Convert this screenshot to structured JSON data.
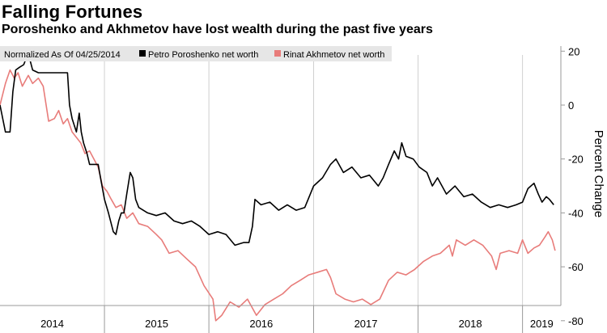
{
  "header": {
    "title": "Falling Fortunes",
    "subtitle": "Poroshenko and Akhmetov have lost wealth during the past five years"
  },
  "chart_data": {
    "type": "line",
    "title": "Falling Fortunes",
    "subtitle": "Poroshenko and Akhmetov have lost wealth during the past five years",
    "note": "Normalized As Of 04/25/2014",
    "ylabel": "Percent Change",
    "ylim": [
      -85,
      22
    ],
    "yticks": [
      20,
      0,
      -20,
      -40,
      -60,
      -80
    ],
    "xlim": [
      "2014-01-01",
      "2019-05-15"
    ],
    "xticks": [
      "2014",
      "2015",
      "2016",
      "2017",
      "2018",
      "2019"
    ],
    "legend_position": "top-left",
    "grid": "vertical year separators",
    "series": [
      {
        "name": "Petro Poroshenko net worth",
        "color": "#000000",
        "points": [
          [
            "2014-01-01",
            0
          ],
          [
            "2014-01-20",
            -10
          ],
          [
            "2014-02-05",
            -10
          ],
          [
            "2014-02-15",
            5
          ],
          [
            "2014-02-25",
            13
          ],
          [
            "2014-03-10",
            14
          ],
          [
            "2014-03-25",
            15
          ],
          [
            "2014-04-05",
            18
          ],
          [
            "2014-04-15",
            17
          ],
          [
            "2014-04-25",
            13
          ],
          [
            "2014-05-15",
            12
          ],
          [
            "2014-06-15",
            12
          ],
          [
            "2014-07-15",
            12
          ],
          [
            "2014-08-15",
            12
          ],
          [
            "2014-08-25",
            12
          ],
          [
            "2014-09-01",
            0
          ],
          [
            "2014-09-10",
            -5
          ],
          [
            "2014-09-25",
            -10
          ],
          [
            "2014-10-05",
            -3
          ],
          [
            "2014-10-12",
            -10
          ],
          [
            "2014-10-20",
            -14
          ],
          [
            "2014-11-01",
            -18
          ],
          [
            "2014-11-10",
            -22
          ],
          [
            "2014-11-20",
            -22
          ],
          [
            "2014-12-01",
            -22
          ],
          [
            "2014-12-10",
            -22
          ],
          [
            "2014-12-20",
            -28
          ],
          [
            "2015-01-01",
            -35
          ],
          [
            "2015-01-15",
            -40
          ],
          [
            "2015-02-01",
            -47
          ],
          [
            "2015-02-10",
            -48
          ],
          [
            "2015-02-20",
            -43
          ],
          [
            "2015-03-01",
            -40
          ],
          [
            "2015-03-10",
            -40
          ],
          [
            "2015-03-20",
            -33
          ],
          [
            "2015-04-01",
            -25
          ],
          [
            "2015-04-10",
            -27
          ],
          [
            "2015-04-20",
            -35
          ],
          [
            "2015-05-01",
            -38
          ],
          [
            "2015-06-01",
            -40
          ],
          [
            "2015-07-01",
            -41
          ],
          [
            "2015-08-01",
            -40
          ],
          [
            "2015-09-01",
            -43
          ],
          [
            "2015-10-01",
            -44
          ],
          [
            "2015-11-01",
            -43
          ],
          [
            "2015-12-01",
            -45
          ],
          [
            "2016-01-01",
            -48
          ],
          [
            "2016-02-01",
            -47
          ],
          [
            "2016-03-01",
            -48
          ],
          [
            "2016-04-01",
            -52
          ],
          [
            "2016-05-01",
            -51
          ],
          [
            "2016-05-20",
            -51
          ],
          [
            "2016-06-01",
            -45
          ],
          [
            "2016-06-10",
            -35
          ],
          [
            "2016-07-01",
            -37
          ],
          [
            "2016-08-01",
            -36
          ],
          [
            "2016-09-01",
            -39
          ],
          [
            "2016-10-01",
            -37
          ],
          [
            "2016-11-01",
            -39
          ],
          [
            "2016-12-01",
            -38
          ],
          [
            "2017-01-01",
            -30
          ],
          [
            "2017-02-01",
            -27
          ],
          [
            "2017-03-01",
            -22
          ],
          [
            "2017-03-20",
            -20
          ],
          [
            "2017-04-15",
            -25
          ],
          [
            "2017-05-15",
            -23
          ],
          [
            "2017-06-15",
            -27
          ],
          [
            "2017-07-15",
            -26
          ],
          [
            "2017-08-15",
            -30
          ],
          [
            "2017-09-01",
            -27
          ],
          [
            "2017-09-20",
            -22
          ],
          [
            "2017-10-10",
            -17
          ],
          [
            "2017-10-25",
            -20
          ],
          [
            "2017-11-05",
            -14
          ],
          [
            "2017-11-20",
            -19
          ],
          [
            "2017-12-15",
            -20
          ],
          [
            "2018-01-05",
            -23
          ],
          [
            "2018-02-01",
            -25
          ],
          [
            "2018-02-20",
            -30
          ],
          [
            "2018-03-10",
            -27
          ],
          [
            "2018-04-10",
            -33
          ],
          [
            "2018-05-10",
            -30
          ],
          [
            "2018-06-10",
            -34
          ],
          [
            "2018-07-10",
            -33
          ],
          [
            "2018-08-10",
            -36
          ],
          [
            "2018-09-10",
            -38
          ],
          [
            "2018-10-10",
            -37
          ],
          [
            "2018-11-10",
            -38
          ],
          [
            "2018-12-10",
            -37
          ],
          [
            "2019-01-01",
            -36
          ],
          [
            "2019-01-20",
            -31
          ],
          [
            "2019-02-10",
            -29
          ],
          [
            "2019-02-25",
            -33
          ],
          [
            "2019-03-10",
            -36
          ],
          [
            "2019-03-25",
            -34
          ],
          [
            "2019-04-05",
            -35
          ],
          [
            "2019-04-20",
            -37
          ]
        ]
      },
      {
        "name": "Rinat Akhmetov net worth",
        "color": "#e87c7a",
        "points": [
          [
            "2014-01-01",
            0
          ],
          [
            "2014-01-20",
            8
          ],
          [
            "2014-02-05",
            13
          ],
          [
            "2014-02-20",
            10
          ],
          [
            "2014-03-05",
            12
          ],
          [
            "2014-03-20",
            7
          ],
          [
            "2014-04-10",
            11
          ],
          [
            "2014-04-25",
            8
          ],
          [
            "2014-05-15",
            10
          ],
          [
            "2014-06-01",
            7
          ],
          [
            "2014-06-20",
            -6
          ],
          [
            "2014-07-10",
            -5
          ],
          [
            "2014-07-25",
            -2
          ],
          [
            "2014-08-10",
            -7
          ],
          [
            "2014-08-25",
            -5
          ],
          [
            "2014-09-10",
            -10
          ],
          [
            "2014-09-25",
            -12
          ],
          [
            "2014-10-10",
            -14
          ],
          [
            "2014-10-25",
            -18
          ],
          [
            "2014-11-10",
            -17
          ],
          [
            "2014-11-25",
            -20
          ],
          [
            "2014-12-10",
            -23
          ],
          [
            "2014-12-25",
            -30
          ],
          [
            "2015-01-10",
            -32
          ],
          [
            "2015-01-25",
            -35
          ],
          [
            "2015-02-10",
            -38
          ],
          [
            "2015-03-01",
            -37
          ],
          [
            "2015-03-20",
            -42
          ],
          [
            "2015-04-10",
            -40
          ],
          [
            "2015-05-01",
            -44
          ],
          [
            "2015-06-01",
            -45
          ],
          [
            "2015-07-01",
            -48
          ],
          [
            "2015-07-20",
            -50
          ],
          [
            "2015-08-15",
            -55
          ],
          [
            "2015-09-15",
            -54
          ],
          [
            "2015-10-15",
            -57
          ],
          [
            "2015-11-15",
            -60
          ],
          [
            "2015-12-15",
            -67
          ],
          [
            "2016-01-15",
            -72
          ],
          [
            "2016-01-25",
            -80
          ],
          [
            "2016-02-15",
            -78
          ],
          [
            "2016-03-15",
            -73
          ],
          [
            "2016-04-15",
            -75
          ],
          [
            "2016-05-15",
            -72
          ],
          [
            "2016-06-15",
            -78
          ],
          [
            "2016-07-15",
            -74
          ],
          [
            "2016-08-15",
            -72
          ],
          [
            "2016-09-15",
            -70
          ],
          [
            "2016-10-15",
            -67
          ],
          [
            "2016-11-15",
            -65
          ],
          [
            "2016-12-15",
            -63
          ],
          [
            "2017-01-15",
            -62
          ],
          [
            "2017-02-15",
            -61
          ],
          [
            "2017-03-01",
            -64
          ],
          [
            "2017-03-20",
            -70
          ],
          [
            "2017-04-20",
            -72
          ],
          [
            "2017-05-20",
            -73
          ],
          [
            "2017-06-20",
            -72
          ],
          [
            "2017-07-20",
            -74
          ],
          [
            "2017-08-20",
            -72
          ],
          [
            "2017-09-20",
            -65
          ],
          [
            "2017-10-20",
            -62
          ],
          [
            "2017-11-20",
            -63
          ],
          [
            "2017-12-20",
            -61
          ],
          [
            "2018-01-20",
            -58
          ],
          [
            "2018-02-20",
            -56
          ],
          [
            "2018-03-20",
            -55
          ],
          [
            "2018-04-20",
            -52
          ],
          [
            "2018-05-01",
            -56
          ],
          [
            "2018-05-15",
            -50
          ],
          [
            "2018-06-15",
            -52
          ],
          [
            "2018-07-15",
            -50
          ],
          [
            "2018-08-15",
            -52
          ],
          [
            "2018-09-15",
            -56
          ],
          [
            "2018-10-01",
            -61
          ],
          [
            "2018-10-15",
            -55
          ],
          [
            "2018-11-15",
            -54
          ],
          [
            "2018-12-15",
            -55
          ],
          [
            "2019-01-01",
            -50
          ],
          [
            "2019-01-20",
            -55
          ],
          [
            "2019-02-10",
            -53
          ],
          [
            "2019-03-01",
            -52
          ],
          [
            "2019-03-20",
            -49
          ],
          [
            "2019-04-01",
            -47
          ],
          [
            "2019-04-15",
            -50
          ],
          [
            "2019-04-25",
            -54
          ]
        ]
      }
    ]
  }
}
